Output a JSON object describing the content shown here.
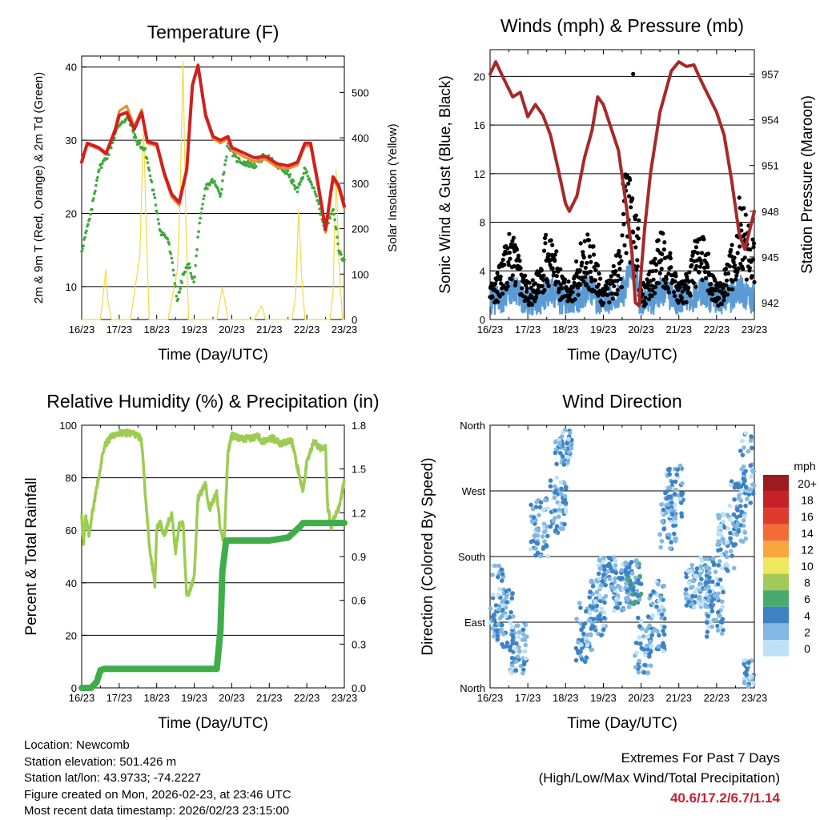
{
  "chart_data": [
    {
      "type": "line",
      "title": "Temperature (F)",
      "xlabel": "Time (Day/UTC)",
      "ylabel": "2m & 9m T (Red, Orange) & 2m Td (Green)",
      "ylabel_right": "Solar Insolation (Yellow)",
      "x_ticks": [
        "16/23",
        "17/23",
        "18/23",
        "19/23",
        "20/23",
        "21/23",
        "22/23",
        "23/23"
      ],
      "ylim": [
        5.5,
        41.5
      ],
      "y_ticks": [
        10,
        20,
        30,
        40
      ],
      "ylim_right": [
        0,
        580
      ],
      "y_ticks_right": [
        0,
        100,
        200,
        300,
        400,
        500
      ],
      "x_range_days": [
        0,
        7
      ],
      "series": [
        {
          "name": "2m T",
          "color": "#d02020",
          "axis": "left",
          "x": [
            0,
            0.15,
            0.45,
            0.65,
            0.9,
            1.0,
            1.2,
            1.4,
            1.6,
            1.75,
            2.0,
            2.2,
            2.4,
            2.6,
            2.8,
            2.95,
            3.1,
            3.3,
            3.5,
            3.7,
            3.9,
            4.0,
            4.3,
            4.6,
            4.9,
            5.2,
            5.5,
            5.75,
            5.95,
            6.1,
            6.3,
            6.5,
            6.7,
            6.85,
            7.0
          ],
          "values": [
            27,
            29.6,
            29,
            28.2,
            31.5,
            33.4,
            33.8,
            31.5,
            33.8,
            29.8,
            29.5,
            25.5,
            22.6,
            21.5,
            26,
            37.5,
            40.2,
            33.5,
            30.5,
            30,
            30.5,
            29,
            28.3,
            27.6,
            27.8,
            26.8,
            26.5,
            27,
            29.6,
            29.6,
            24,
            17.8,
            25,
            23.8,
            21
          ]
        },
        {
          "name": "9m T",
          "color": "#f08a30",
          "axis": "left",
          "x": [
            0,
            0.15,
            0.45,
            0.65,
            0.9,
            1.0,
            1.2,
            1.4,
            1.6,
            1.75,
            2.0,
            2.2,
            2.4,
            2.6,
            2.8,
            2.95,
            3.1,
            3.3,
            3.5,
            3.7,
            3.9,
            4.0,
            4.3,
            4.6,
            4.9,
            5.2,
            5.5,
            5.75,
            5.95,
            6.1,
            6.3,
            6.5,
            6.7,
            6.85,
            7.0
          ],
          "values": [
            27.3,
            29.4,
            28.8,
            28,
            31.8,
            34,
            34.7,
            31.9,
            34.2,
            29.6,
            29.2,
            25.2,
            22.2,
            21.1,
            25.8,
            37.3,
            40.4,
            33.2,
            30.2,
            29.6,
            30.2,
            28.6,
            27.8,
            27.1,
            27.4,
            26.3,
            26.1,
            26.6,
            29.2,
            29.2,
            23.6,
            17.4,
            24.6,
            23.4,
            20.6
          ]
        },
        {
          "name": "2m Td",
          "color": "#40a83c",
          "axis": "left",
          "x": [
            0,
            0.1,
            0.25,
            0.45,
            0.7,
            0.9,
            1.05,
            1.25,
            1.45,
            1.7,
            1.85,
            2.0,
            2.1,
            2.3,
            2.45,
            2.55,
            2.7,
            2.85,
            3.0,
            3.1,
            3.3,
            3.5,
            3.7,
            3.9,
            4.1,
            4.3,
            4.6,
            4.9,
            5.2,
            5.5,
            5.75,
            5.95,
            6.1,
            6.3,
            6.5,
            6.7,
            6.85,
            7.0
          ],
          "values": [
            15,
            17,
            20,
            26,
            28,
            31,
            32.5,
            33,
            30,
            28.5,
            24.5,
            20.5,
            17.5,
            16.5,
            12,
            8,
            11.5,
            13,
            10.5,
            17,
            23.5,
            24.5,
            22.5,
            29.5,
            27.5,
            27,
            26.5,
            28,
            26.5,
            25.5,
            23,
            26,
            24.5,
            21.5,
            17.5,
            21,
            15,
            13.5
          ]
        },
        {
          "name": "Solar Insolation",
          "color": "#f6d840",
          "axis": "right",
          "x": [
            0,
            0.5,
            0.58,
            0.64,
            0.7,
            0.8,
            1.3,
            1.55,
            1.65,
            1.72,
            1.8,
            2.0,
            2.3,
            2.55,
            2.62,
            2.7,
            2.78,
            2.85,
            3.3,
            3.6,
            3.68,
            3.75,
            3.82,
            3.9,
            4.3,
            4.6,
            4.72,
            4.8,
            4.9,
            5.3,
            5.6,
            5.7,
            5.78,
            5.86,
            5.95,
            6.3,
            6.62,
            6.7,
            6.78,
            6.86,
            6.95,
            7.0
          ],
          "values": [
            0,
            0,
            60,
            110,
            40,
            0,
            0,
            140,
            430,
            200,
            0,
            0,
            0,
            110,
            260,
            570,
            200,
            0,
            0,
            0,
            40,
            70,
            40,
            0,
            0,
            0,
            20,
            30,
            0,
            0,
            0,
            50,
            240,
            100,
            0,
            0,
            0,
            60,
            330,
            120,
            0,
            0
          ]
        }
      ]
    },
    {
      "type": "scatter",
      "title": "Winds (mph) & Pressure (mb)",
      "xlabel": "Time (Day/UTC)",
      "ylabel": "Sonic Wind & Gust (Blue, Black)",
      "ylabel_right": "Station Pressure (Maroon)",
      "x_ticks": [
        "16/23",
        "17/23",
        "18/23",
        "19/23",
        "20/23",
        "21/23",
        "22/23",
        "23/23"
      ],
      "ylim": [
        0,
        22.2
      ],
      "y_ticks": [
        0,
        4,
        8,
        12,
        16,
        20
      ],
      "ylim_right": [
        940.9,
        958.6
      ],
      "y_ticks_right": [
        942,
        945,
        948,
        951,
        954,
        957
      ],
      "series": [
        {
          "name": "Station Pressure",
          "color": "#a52a2a",
          "axis": "right",
          "x": [
            0,
            0.15,
            0.4,
            0.6,
            0.8,
            1.0,
            1.2,
            1.4,
            1.6,
            1.8,
            2.0,
            2.1,
            2.3,
            2.5,
            2.7,
            2.85,
            3.0,
            3.2,
            3.4,
            3.6,
            3.75,
            3.85,
            3.95,
            4.0,
            4.1,
            4.25,
            4.5,
            4.8,
            5.0,
            5.2,
            5.4,
            5.6,
            5.8,
            6.0,
            6.2,
            6.4,
            6.6,
            6.75,
            6.9,
            7.0
          ],
          "values": [
            957,
            957.8,
            956.5,
            955.5,
            955.8,
            954.2,
            955,
            954.3,
            953,
            950.8,
            948.5,
            948,
            949,
            951.5,
            953.3,
            955.5,
            955,
            953.5,
            952,
            948.5,
            945.5,
            942,
            941.8,
            944,
            947,
            950.5,
            954.5,
            957.2,
            957.8,
            957.5,
            957.6,
            956.5,
            955.5,
            954.5,
            953,
            950,
            946.5,
            945.5,
            947,
            948
          ]
        },
        {
          "name": "Sonic Wind",
          "color": "#5b9bd5",
          "axis": "left",
          "summary": "mostly 0-3.5 mph, peaks near 5 mph"
        },
        {
          "name": "Gust",
          "color": "#000000",
          "axis": "left",
          "summary": "mostly 2-8 mph, max 20.2 mph near 19.8 days"
        }
      ]
    },
    {
      "type": "line",
      "title": "Relative Humidity (%) & Precipitation (in)",
      "xlabel": "Time (Day/UTC)",
      "ylabel": "Percent & Total Rainfall",
      "x_ticks": [
        "16/23",
        "17/23",
        "18/23",
        "19/23",
        "20/23",
        "21/23",
        "22/23",
        "23/23"
      ],
      "ylim": [
        0,
        100
      ],
      "y_ticks": [
        0,
        20,
        40,
        60,
        80,
        100
      ],
      "ylim_right": [
        0,
        1.8
      ],
      "y_ticks_right": [
        0.0,
        0.3,
        0.6,
        0.9,
        1.2,
        1.5,
        1.8
      ],
      "series": [
        {
          "name": "Relative Humidity",
          "color": "#9ccc52",
          "axis": "left",
          "x": [
            0,
            0.05,
            0.1,
            0.2,
            0.3,
            0.45,
            0.6,
            0.8,
            1.0,
            1.3,
            1.5,
            1.6,
            1.7,
            1.8,
            1.95,
            2.0,
            2.1,
            2.2,
            2.4,
            2.5,
            2.6,
            2.7,
            2.8,
            3.0,
            3.1,
            3.3,
            3.4,
            3.6,
            3.7,
            3.8,
            3.9,
            4.0,
            4.2,
            4.5,
            4.7,
            4.8,
            5.1,
            5.3,
            5.6,
            5.7,
            5.9,
            6.0,
            6.2,
            6.35,
            6.5,
            6.55,
            6.65,
            6.75,
            6.85,
            7.0
          ],
          "values": [
            65,
            55,
            66,
            58,
            68,
            80,
            92,
            96,
            97,
            97,
            96,
            94,
            72,
            55,
            39,
            61,
            63,
            58,
            67,
            52,
            62,
            63,
            34,
            42,
            72,
            78,
            68,
            74,
            60,
            56,
            90,
            96,
            95,
            95,
            96,
            94,
            95,
            93,
            94,
            87,
            75,
            86,
            94,
            91,
            92,
            70,
            61,
            66,
            68,
            79
          ]
        },
        {
          "name": "Total Precipitation",
          "color": "#3fae49",
          "axis": "right",
          "x": [
            0,
            0.25,
            0.4,
            0.5,
            0.6,
            3.6,
            3.7,
            3.75,
            3.85,
            5.0,
            5.5,
            5.8,
            5.9,
            7.0
          ],
          "values": [
            0,
            0,
            0.04,
            0.12,
            0.13,
            0.13,
            0.4,
            0.8,
            1.01,
            1.01,
            1.03,
            1.1,
            1.13,
            1.13
          ]
        }
      ]
    },
    {
      "type": "scatter",
      "title": "Wind Direction",
      "xlabel": "Time (Day/UTC)",
      "ylabel": "Direction (Colored By Speed)",
      "x_ticks": [
        "16/23",
        "17/23",
        "18/23",
        "19/23",
        "20/23",
        "21/23",
        "22/23",
        "23/23"
      ],
      "y_ticks": [
        "North",
        "East",
        "South",
        "West",
        "North"
      ],
      "ylim_degrees": [
        0,
        360
      ],
      "colorbar": {
        "title": "mph",
        "labels": [
          "20+",
          "18",
          "16",
          "14",
          "12",
          "10",
          "8",
          "6",
          "4",
          "2",
          "0"
        ],
        "colors": [
          "#9b1b1e",
          "#c62127",
          "#e03a2f",
          "#f26c36",
          "#f9a640",
          "#ede85e",
          "#a3c95b",
          "#4aa96c",
          "#3d82c4",
          "#82b8e3",
          "#bfe1f6"
        ]
      }
    }
  ],
  "station": {
    "location": "Location: Newcomb",
    "elevation": "Station elevation: 501.426 m",
    "latlon": "Station lat/lon: 43.9733; -74.2227",
    "created": "Figure created on Mon, 2026-02-23, at 23:46 UTC",
    "recent": "Most recent data timestamp: 2026/02/23 23:15:00"
  },
  "extremes": {
    "title": "Extremes For Past 7 Days",
    "subtitle": "(High/Low/Max Wind/Total Precipitation)",
    "values": "40.6/17.2/6.7/1.14",
    "color": "#c8202e"
  }
}
